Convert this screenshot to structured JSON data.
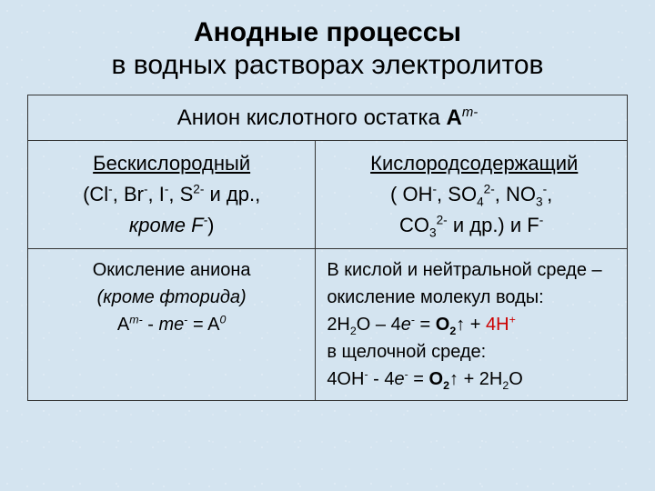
{
  "title": {
    "main": "Анодные процессы",
    "sub": "в водных растворах электролитов"
  },
  "header_row": {
    "prefix": "Анион кислотного остатка ",
    "formula_base": "A",
    "formula_sup_i": "m-"
  },
  "columns": {
    "left": {
      "heading": "Бескислородный",
      "examples_html": "(Cl<sup>-</sup>, Br<sup>-</sup>, I<sup>-</sup>, S<sup>2-</sup> и др.,",
      "except_prefix": "кроме F",
      "except_sup_i": "-",
      "except_suffix": ")"
    },
    "right": {
      "heading": "Кислородсодержащий",
      "line1_html": "( OH<sup>-</sup>, SO<sub>4</sub><sup>2-</sup>,  NO<sub>3</sub><sup>-</sup>,",
      "line2_html": "CO<sub>3</sub><sup>2-</sup> и др.) и F<sup>-</sup>"
    }
  },
  "body": {
    "left": {
      "line1": "Окисление аниона",
      "line2_italic": "(кроме фторида)",
      "eq_html": "A<sup><i>m-</i></sup> - <i>me</i><sup>-</sup> = A<sup><i>0</i></sup>"
    },
    "right": {
      "p1": "В кислой и нейтральной среде – окисление молекул воды:",
      "eq1_lhs_html": "2H<sub>2</sub>O – 4<i>e</i><sup>-</sup> = ",
      "eq1_o2_html": "O<sub>2</sub>↑",
      "eq1_plus": " + ",
      "eq1_4h_html": "4H<sup>+</sup>",
      "p2": "в щелочной среде:",
      "eq2_lhs_html": "4OH<sup>-</sup> - 4<i>e</i><sup>-</sup> = ",
      "eq2_o2_html": "O<sub>2</sub>↑",
      "eq2_rest_html": " + 2H<sub>2</sub>O"
    }
  },
  "colors": {
    "background": "#d4e4f0",
    "text": "#000000",
    "border": "#333333",
    "highlight": "#cc0000"
  },
  "typography": {
    "title_fontsize": 30,
    "cell_fontsize": 22,
    "body_fontsize": 20,
    "font_family": "Arial"
  }
}
